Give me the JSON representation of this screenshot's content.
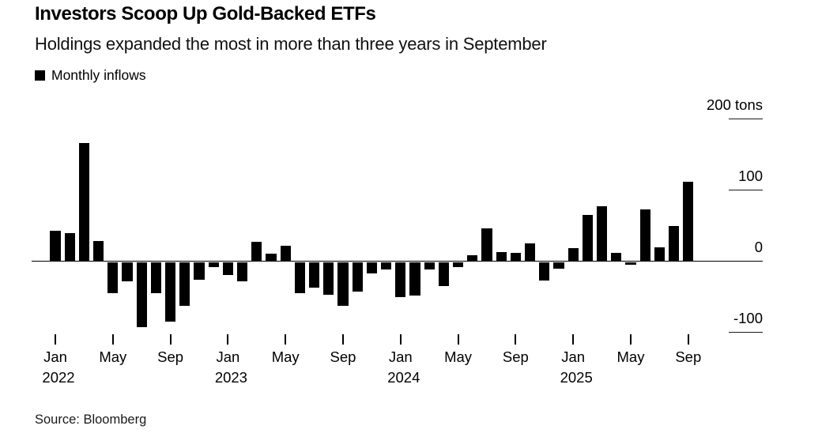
{
  "header": {
    "title": "Investors Scoop Up Gold-Backed ETFs",
    "subtitle": "Holdings expanded the most in more than three years in September",
    "legend_label": "Monthly inflows"
  },
  "footer": {
    "source": "Source: Bloomberg"
  },
  "colors": {
    "bar": "#000000",
    "axis": "#000000",
    "text": "#000000",
    "background": "#ffffff"
  },
  "chart_data": {
    "type": "bar",
    "title": "Investors Scoop Up Gold-Backed ETFs",
    "subtitle": "Holdings expanded the most in more than three years in September",
    "series_name": "Monthly inflows",
    "unit": "tons",
    "ylim": [
      -100,
      200
    ],
    "grid": "right-side tick dashes only, zero baseline line",
    "legend_position": "top-left",
    "categories": [
      "Jan 2022",
      "Feb 2022",
      "Mar 2022",
      "Apr 2022",
      "May 2022",
      "Jun 2022",
      "Jul 2022",
      "Aug 2022",
      "Sep 2022",
      "Oct 2022",
      "Nov 2022",
      "Dec 2022",
      "Jan 2023",
      "Feb 2023",
      "Mar 2023",
      "Apr 2023",
      "May 2023",
      "Jun 2023",
      "Jul 2023",
      "Aug 2023",
      "Sep 2023",
      "Oct 2023",
      "Nov 2023",
      "Dec 2023",
      "Jan 2024",
      "Feb 2024",
      "Mar 2024",
      "Apr 2024",
      "May 2024",
      "Jun 2024",
      "Jul 2024",
      "Aug 2024",
      "Sep 2024",
      "Oct 2024",
      "Nov 2024",
      "Dec 2024",
      "Jan 2025",
      "Feb 2025",
      "Mar 2025",
      "Apr 2025",
      "May 2025",
      "Jun 2025",
      "Jul 2025",
      "Aug 2025",
      "Sep 2025"
    ],
    "values": [
      43,
      40,
      166,
      29,
      -44,
      -27,
      -91,
      -44,
      -84,
      -61,
      -25,
      -7,
      -18,
      -27,
      27,
      11,
      22,
      -44,
      -36,
      -46,
      -62,
      -42,
      -16,
      -10,
      -49,
      -47,
      -10,
      -34,
      -7,
      9,
      46,
      13,
      12,
      25,
      -26,
      -9,
      19,
      65,
      78,
      12,
      -4,
      73,
      20,
      50,
      112
    ],
    "y_ticks": [
      {
        "label": "200 tons",
        "value": 200
      },
      {
        "label": "100",
        "value": 100
      },
      {
        "label": "0",
        "value": 0
      },
      {
        "label": "-100",
        "value": -100
      }
    ],
    "x_ticks": [
      {
        "index": 0,
        "month": "Jan",
        "year": "2022"
      },
      {
        "index": 4,
        "month": "May"
      },
      {
        "index": 8,
        "month": "Sep"
      },
      {
        "index": 12,
        "month": "Jan",
        "year": "2023"
      },
      {
        "index": 16,
        "month": "May"
      },
      {
        "index": 20,
        "month": "Sep"
      },
      {
        "index": 24,
        "month": "Jan",
        "year": "2024"
      },
      {
        "index": 28,
        "month": "May"
      },
      {
        "index": 32,
        "month": "Sep"
      },
      {
        "index": 36,
        "month": "Jan",
        "year": "2025"
      },
      {
        "index": 40,
        "month": "May"
      },
      {
        "index": 44,
        "month": "Sep"
      }
    ]
  }
}
